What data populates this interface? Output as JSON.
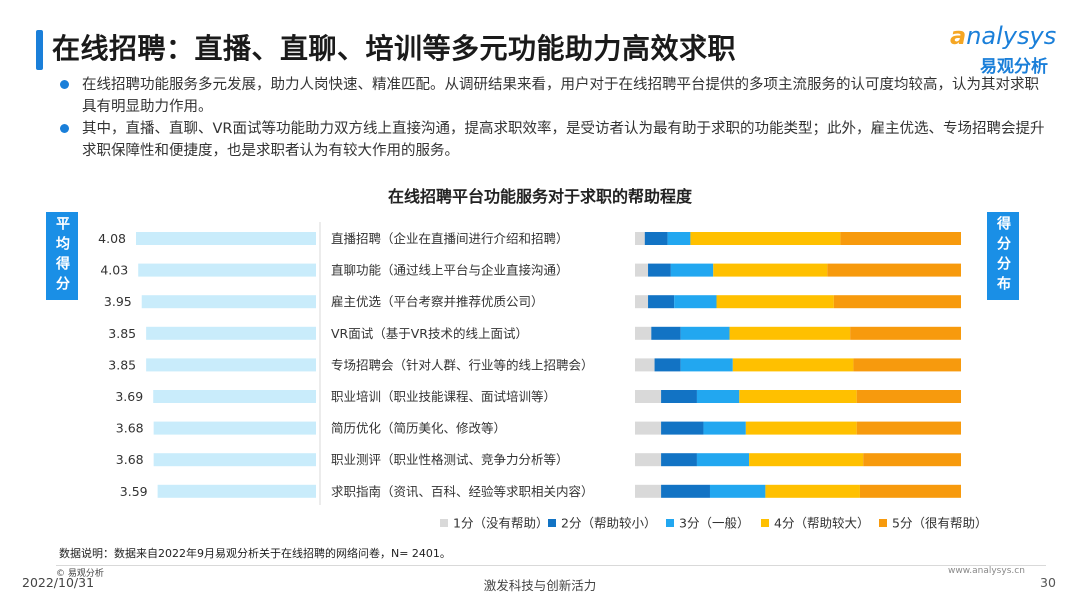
{
  "header": {
    "title": "在线招聘：直播、直聊、培训等多元功能助力高效求职",
    "logo_en": "nalysys",
    "logo_en_initial": "a",
    "logo_cn": "易观分析"
  },
  "bullets": [
    "在线招聘功能服务多元发展，助力人岗快速、精准匹配。从调研结果来看，用户对于在线招聘平台提供的多项主流服务的认可度均较高，认为其对求职具有明显助力作用。",
    "其中，直播、直聊、VR面试等功能助力双方线上直接沟通，提高求职效率，是受访者认为最有助于求职的功能类型；此外，雇主优选、专场招聘会提升求职保障性和便捷度，也是求职者认为有较大作用的服务。"
  ],
  "side_tags": {
    "left": "平均得分",
    "right": "得分分布"
  },
  "chart_data": {
    "type": "bar",
    "title": "在线招聘平台功能服务对于求职的帮助程度",
    "categories": [
      "直播招聘（企业在直播间进行介绍和招聘）",
      "直聊功能（通过线上平台与企业直接沟通）",
      "雇主优选（平台考察并推荐优质公司）",
      "VR面试（基于VR技术的线上面试）",
      "专场招聘会（针对人群、行业等的线上招聘会）",
      "职业培训（职业技能课程、面试培训等）",
      "简历优化（简历美化、修改等）",
      "职业测评（职业性格测试、竞争力分析等）",
      "求职指南（资讯、百科、经验等求职相关内容）"
    ],
    "avg_scores": [
      4.08,
      4.03,
      3.95,
      3.85,
      3.85,
      3.69,
      3.68,
      3.68,
      3.59
    ],
    "avg_score_range": [
      0,
      4.08
    ],
    "distribution_series": [
      {
        "name": "1分（没有帮助）",
        "color": "#d9d9d9",
        "values": [
          3,
          4,
          4,
          5,
          6,
          8,
          8,
          8,
          8
        ]
      },
      {
        "name": "2分（帮助较小）",
        "color": "#1273c4",
        "values": [
          7,
          7,
          8,
          9,
          8,
          11,
          13,
          11,
          15
        ]
      },
      {
        "name": "3分（一般）",
        "color": "#22a7f0",
        "values": [
          7,
          13,
          13,
          15,
          16,
          13,
          13,
          16,
          17
        ]
      },
      {
        "name": "4分（帮助较大）",
        "color": "#ffc000",
        "values": [
          46,
          35,
          36,
          37,
          37,
          36,
          34,
          35,
          29
        ]
      },
      {
        "name": "5分（很有帮助）",
        "color": "#f79a0d",
        "values": [
          37,
          41,
          39,
          34,
          33,
          32,
          32,
          30,
          31
        ]
      }
    ],
    "avg_bar_color": "#c9ecfb",
    "legend_position": "bottom-right"
  },
  "footer": {
    "note": "数据说明：数据来自2022年9月易观分析关于在线招聘的网络问卷，N= 2401。",
    "copyright": "© 易观分析",
    "date": "2022/10/31",
    "slogan": "激发科技与创新活力",
    "site": "www.analysys.cn",
    "page": "30"
  }
}
